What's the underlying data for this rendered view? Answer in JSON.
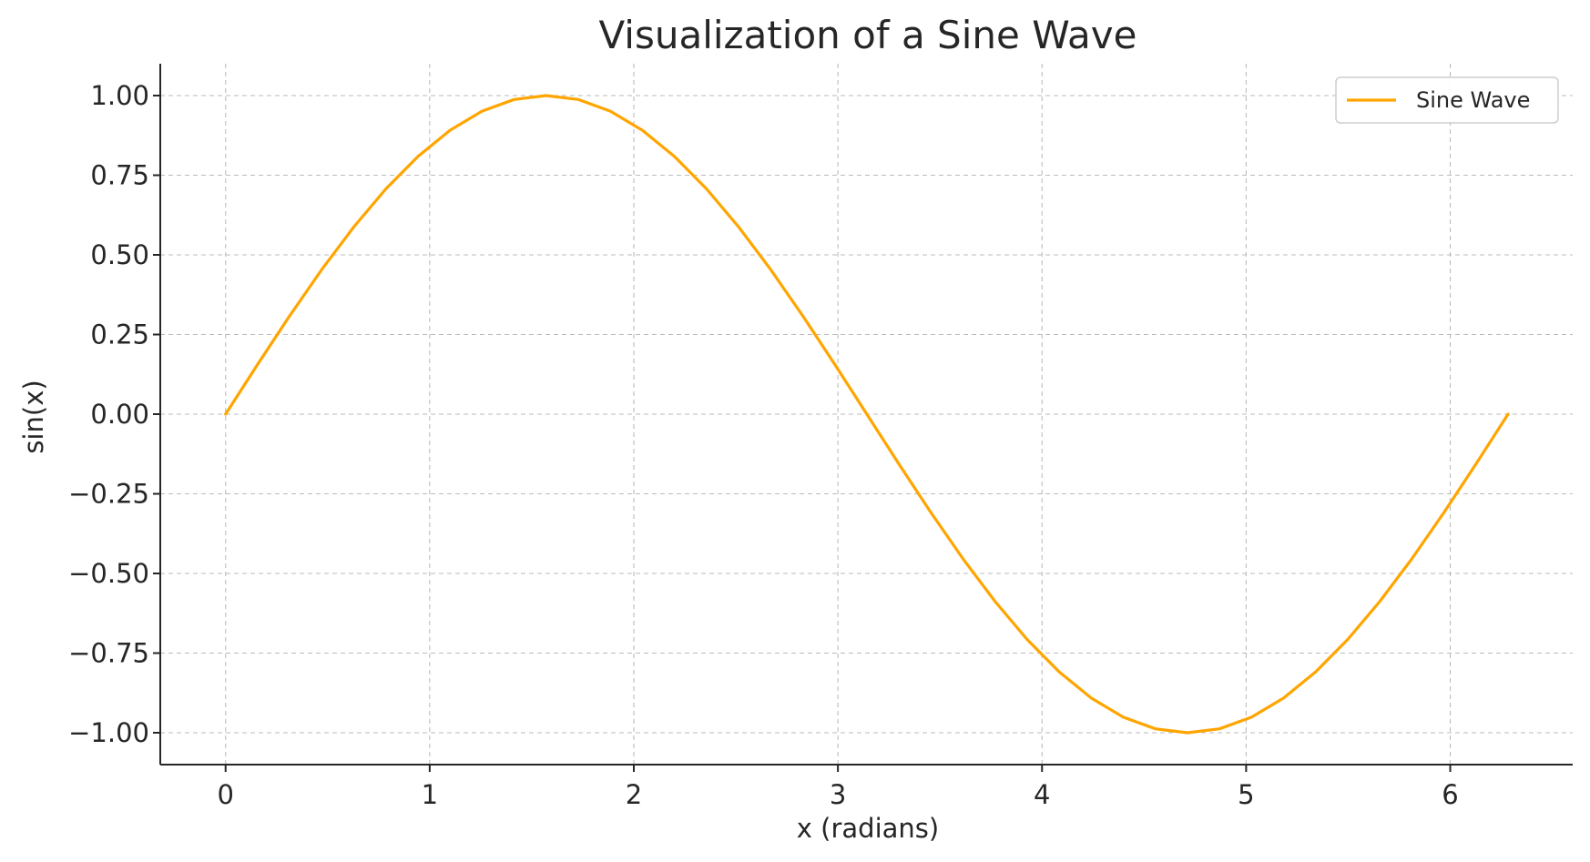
{
  "chart_data": {
    "type": "line",
    "title": "Visualization of a Sine Wave",
    "xlabel": "x (radians)",
    "ylabel": "sin(x)",
    "xlim": [
      -0.32,
      6.6
    ],
    "ylim": [
      -1.1,
      1.1
    ],
    "x_ticks": [
      0,
      1,
      2,
      3,
      4,
      5,
      6
    ],
    "x_tick_labels": [
      "0",
      "1",
      "2",
      "3",
      "4",
      "5",
      "6"
    ],
    "y_ticks": [
      1.0,
      0.75,
      0.5,
      0.25,
      0.0,
      -0.25,
      -0.5,
      -0.75,
      -1.0
    ],
    "y_tick_labels": [
      "1.00",
      "0.75",
      "0.50",
      "0.25",
      "0.00",
      "−0.25",
      "−0.50",
      "−0.75",
      "−1.00"
    ],
    "grid": true,
    "legend_position": "top-right",
    "series": [
      {
        "name": "Sine Wave",
        "color": "#FFA500",
        "x": [
          0.0,
          0.1571,
          0.3142,
          0.4712,
          0.6283,
          0.7854,
          0.9425,
          1.0996,
          1.2566,
          1.4137,
          1.5708,
          1.7279,
          1.885,
          2.042,
          2.1991,
          2.3562,
          2.5133,
          2.6704,
          2.8274,
          2.9845,
          3.1416,
          3.2987,
          3.4558,
          3.6128,
          3.7699,
          3.927,
          4.0841,
          4.2412,
          4.3982,
          4.5553,
          4.7124,
          4.8695,
          5.0265,
          5.1836,
          5.3407,
          5.4978,
          5.6549,
          5.812,
          5.969,
          6.1261,
          6.2832
        ],
        "y": [
          0.0,
          0.1564,
          0.309,
          0.454,
          0.5878,
          0.7071,
          0.809,
          0.891,
          0.9511,
          0.9877,
          1.0,
          0.9877,
          0.9511,
          0.891,
          0.809,
          0.7071,
          0.5878,
          0.454,
          0.309,
          0.1564,
          0.0,
          -0.1564,
          -0.309,
          -0.454,
          -0.5878,
          -0.7071,
          -0.809,
          -0.891,
          -0.9511,
          -0.9877,
          -1.0,
          -0.9877,
          -0.9511,
          -0.891,
          -0.809,
          -0.7071,
          -0.5878,
          -0.454,
          -0.309,
          -0.1564,
          0.0
        ]
      }
    ]
  }
}
